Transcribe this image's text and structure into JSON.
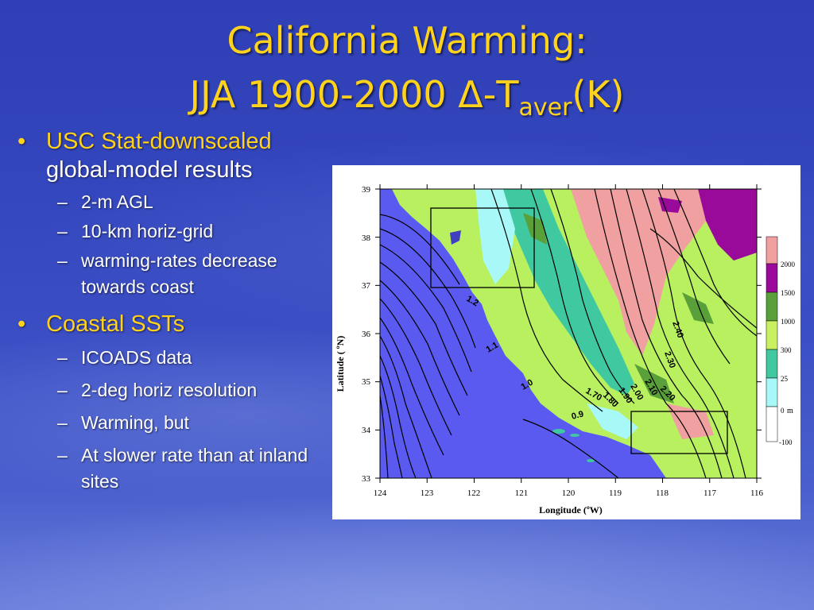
{
  "slide": {
    "title_line1": "California Warming:",
    "title_line2_prefix": "JJA 1900-2000 Δ-T",
    "title_line2_sub": "aver",
    "title_line2_suffix": "(K)"
  },
  "bullets": [
    {
      "text_highlight": "USC Stat-downscaled",
      "text_rest": "global-model results",
      "subs": [
        "2-m AGL",
        "10-km horiz-grid",
        "warming-rates decrease towards coast"
      ]
    },
    {
      "text_highlight": "Coastal SSTs",
      "text_rest": "",
      "subs": [
        "ICOADS data",
        "2-deg horiz resolution",
        "Warming, but",
        "At slower rate than at inland sites"
      ]
    }
  ],
  "map": {
    "y_axis_label": "Latitude ( ºN)",
    "x_axis_label": "Longitude (ºW)",
    "lat_ticks": [
      "39",
      "38",
      "37",
      "36",
      "35",
      "34",
      "33"
    ],
    "lon_ticks": [
      "124",
      "123",
      "122",
      "121",
      "120",
      "119",
      "118",
      "117",
      "116"
    ],
    "contour_labels": [
      "1.2",
      "1.1",
      "1.0",
      "0.9",
      "1.70",
      "1.80",
      "1.90",
      "2.00",
      "2.10",
      "2.20",
      "2.30",
      "2.40"
    ],
    "legend": {
      "labels": [
        "2000",
        "1500",
        "1000",
        "300",
        "25",
        "0",
        "-100"
      ],
      "unit": "m",
      "colors": [
        "#f0a0a0",
        "#9a0a9a",
        "#5aa03a",
        "#c8f060",
        "#40c8a0",
        "#a8f8f8",
        "#ffffff"
      ]
    },
    "colors": {
      "ocean": "#5a5af0",
      "lowland": "#30c8a0",
      "coastal": "#a8f8f8",
      "valley": "#40c8a0",
      "hills": "#b8f060",
      "mountain": "#f0a0a0",
      "peak": "#9a0a9a",
      "mid": "#5aa03a"
    }
  }
}
